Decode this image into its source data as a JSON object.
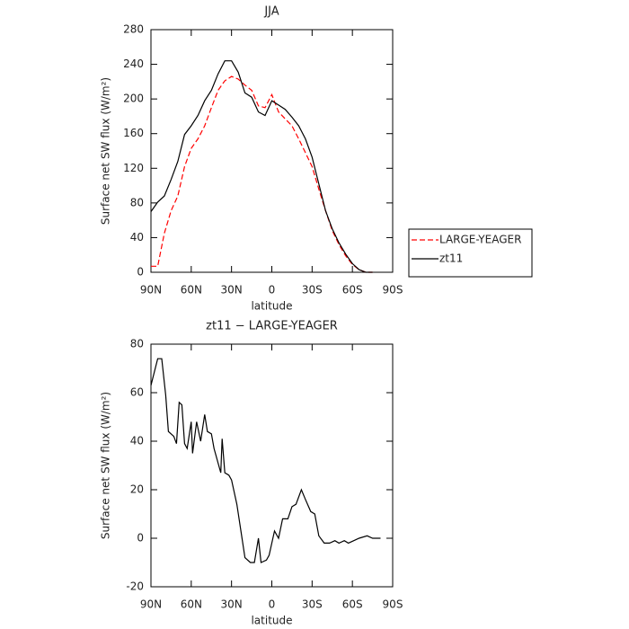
{
  "chart_data": [
    {
      "type": "line",
      "title": "JJA",
      "xlabel": "latitude",
      "ylabel": "Surface net SW flux (W/m²)",
      "x": [
        90,
        85,
        80,
        75,
        70,
        65,
        60,
        55,
        50,
        45,
        40,
        35,
        30,
        25,
        20,
        15,
        10,
        5,
        0,
        -5,
        -10,
        -15,
        -20,
        -25,
        -30,
        -35,
        -40,
        -45,
        -50,
        -55,
        -60,
        -65,
        -70,
        -75
      ],
      "series": [
        {
          "name": "LARGE-YEAGER",
          "color": "#ff0000",
          "linestyle": "dashed",
          "values": [
            7,
            7,
            45,
            71,
            88,
            122,
            143,
            154,
            169,
            190,
            210,
            221,
            226,
            223,
            216,
            210,
            192,
            190,
            205,
            185,
            177,
            169,
            154,
            138,
            122,
            96,
            71,
            48,
            32,
            19,
            9,
            3,
            0,
            0
          ]
        },
        {
          "name": "zt11",
          "color": "#000000",
          "linestyle": "solid",
          "values": [
            70,
            81,
            88,
            107,
            128,
            159,
            169,
            181,
            198,
            210,
            229,
            244,
            244,
            231,
            207,
            202,
            185,
            181,
            198,
            193,
            188,
            179,
            169,
            154,
            133,
            102,
            71,
            50,
            34,
            21,
            10,
            3,
            0,
            0
          ]
        }
      ],
      "xlim": [
        90,
        -90
      ],
      "xticks": [
        {
          "value": 90,
          "label": "90N"
        },
        {
          "value": 60,
          "label": "60N"
        },
        {
          "value": 30,
          "label": "30N"
        },
        0,
        {
          "value": -30,
          "label": "30S"
        },
        {
          "value": -60,
          "label": "60S"
        },
        {
          "value": -90,
          "label": "90S"
        }
      ],
      "ylim": [
        0,
        280
      ],
      "yticks": [
        0,
        40,
        80,
        120,
        160,
        200,
        240,
        280
      ],
      "legend": "right"
    },
    {
      "type": "line",
      "title": "zt11 − LARGE-YEAGER",
      "xlabel": "latitude",
      "ylabel": "Surface net SW flux (W/m²)",
      "x": [
        90,
        85,
        82,
        79,
        77,
        73,
        71,
        69,
        67,
        65,
        63,
        60,
        59,
        56,
        53,
        50,
        48,
        45,
        43,
        38,
        37,
        35,
        32,
        30,
        26,
        23,
        20,
        16,
        13,
        10,
        8,
        4,
        2,
        -2,
        -5,
        -8,
        -12,
        -15,
        -18,
        -22,
        -25,
        -29,
        -32,
        -35,
        -39,
        -43,
        -47,
        -50,
        -54,
        -57,
        -61,
        -65,
        -71,
        -75,
        -81
      ],
      "series": [
        {
          "color": "#000000",
          "linestyle": "solid",
          "values": [
            63,
            74,
            74,
            59,
            44,
            42,
            39,
            56,
            55,
            39,
            37,
            48,
            35,
            48,
            40,
            51,
            44,
            43,
            37,
            27,
            41,
            27,
            26,
            24,
            14,
            3,
            -8,
            -10,
            -10,
            0,
            -10,
            -9,
            -7,
            3,
            0,
            8,
            8,
            13,
            14,
            20,
            16,
            11,
            10,
            1,
            -2,
            -2,
            -1,
            -2,
            -1,
            -2,
            -1,
            0,
            1,
            0,
            0
          ]
        }
      ],
      "xlim": [
        90,
        -90
      ],
      "xticks": [
        {
          "value": 90,
          "label": "90N"
        },
        {
          "value": 60,
          "label": "60N"
        },
        {
          "value": 30,
          "label": "30N"
        },
        0,
        {
          "value": -30,
          "label": "30S"
        },
        {
          "value": -60,
          "label": "60S"
        },
        {
          "value": -90,
          "label": "90S"
        }
      ],
      "ylim": [
        -20,
        80
      ],
      "yticks": [
        -20,
        0,
        20,
        40,
        60,
        80
      ]
    }
  ]
}
